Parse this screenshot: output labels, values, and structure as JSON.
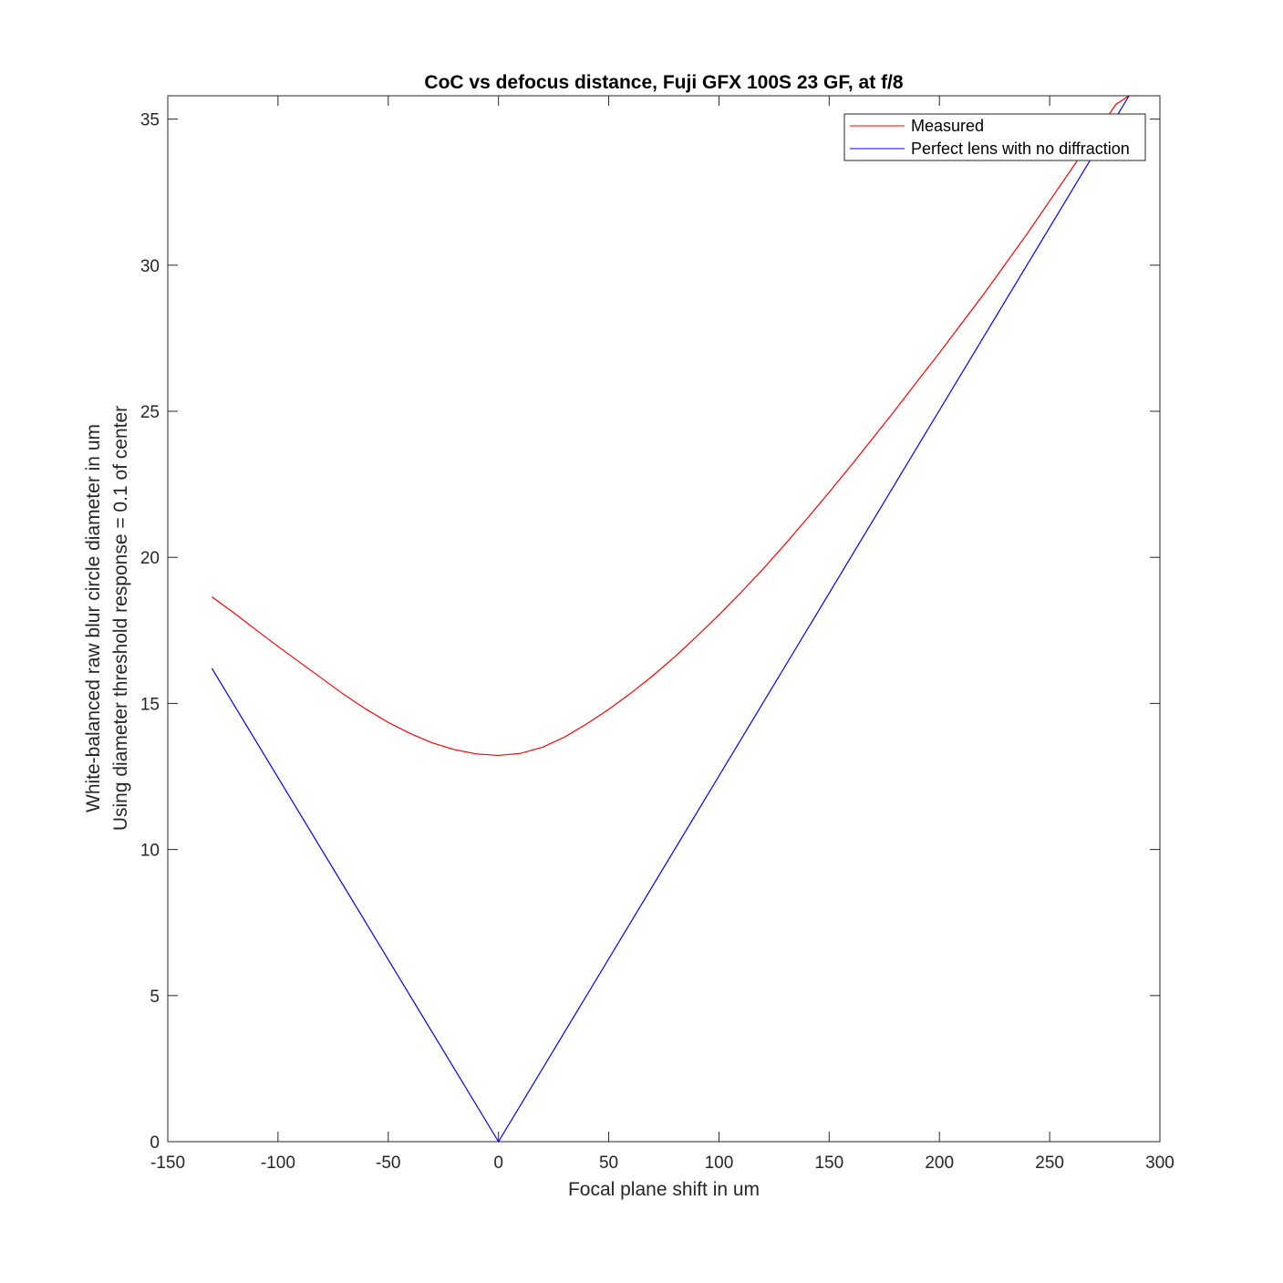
{
  "chart_data": {
    "type": "line",
    "title": "CoC vs defocus distance, Fuji GFX 100S 23  GF, at f/8",
    "xlabel": "Focal plane shift in um",
    "ylabel": [
      "White-balanced raw blur circle diameter in um",
      "Using diameter threshold response = 0.1 of center"
    ],
    "xlim": [
      -150,
      300
    ],
    "ylim": [
      0,
      35.8
    ],
    "xticks": [
      -150,
      -100,
      -50,
      0,
      50,
      100,
      150,
      200,
      250,
      300
    ],
    "yticks": [
      0,
      5,
      10,
      15,
      20,
      25,
      30,
      35
    ],
    "grid": false,
    "legend_position": "top-right",
    "colors": {
      "measured": "#ff0000",
      "perfect": "#0000ff",
      "axes": "#262626"
    },
    "series": [
      {
        "name": "Measured",
        "x": [
          -130,
          -120,
          -110,
          -100,
          -90,
          -80,
          -70,
          -60,
          -50,
          -40,
          -30,
          -20,
          -10,
          0,
          10,
          20,
          30,
          40,
          50,
          60,
          70,
          80,
          90,
          100,
          110,
          120,
          130,
          140,
          150,
          160,
          170,
          180,
          190,
          200,
          210,
          220,
          230,
          240,
          250,
          260,
          270,
          280,
          286
        ],
        "y": [
          18.65,
          18.1,
          17.52,
          16.95,
          16.4,
          15.85,
          15.3,
          14.8,
          14.35,
          13.97,
          13.65,
          13.42,
          13.27,
          13.22,
          13.29,
          13.5,
          13.85,
          14.3,
          14.8,
          15.35,
          15.95,
          16.6,
          17.3,
          18.03,
          18.8,
          19.6,
          20.45,
          21.33,
          22.23,
          23.15,
          24.1,
          25.05,
          26.03,
          27.0,
          28.0,
          29.0,
          30.05,
          31.1,
          32.2,
          33.3,
          34.4,
          35.5,
          35.8
        ]
      },
      {
        "name": "Perfect lens with no diffraction",
        "x": [
          -130,
          0,
          286
        ],
        "y": [
          16.2,
          0,
          35.8
        ]
      }
    ]
  }
}
